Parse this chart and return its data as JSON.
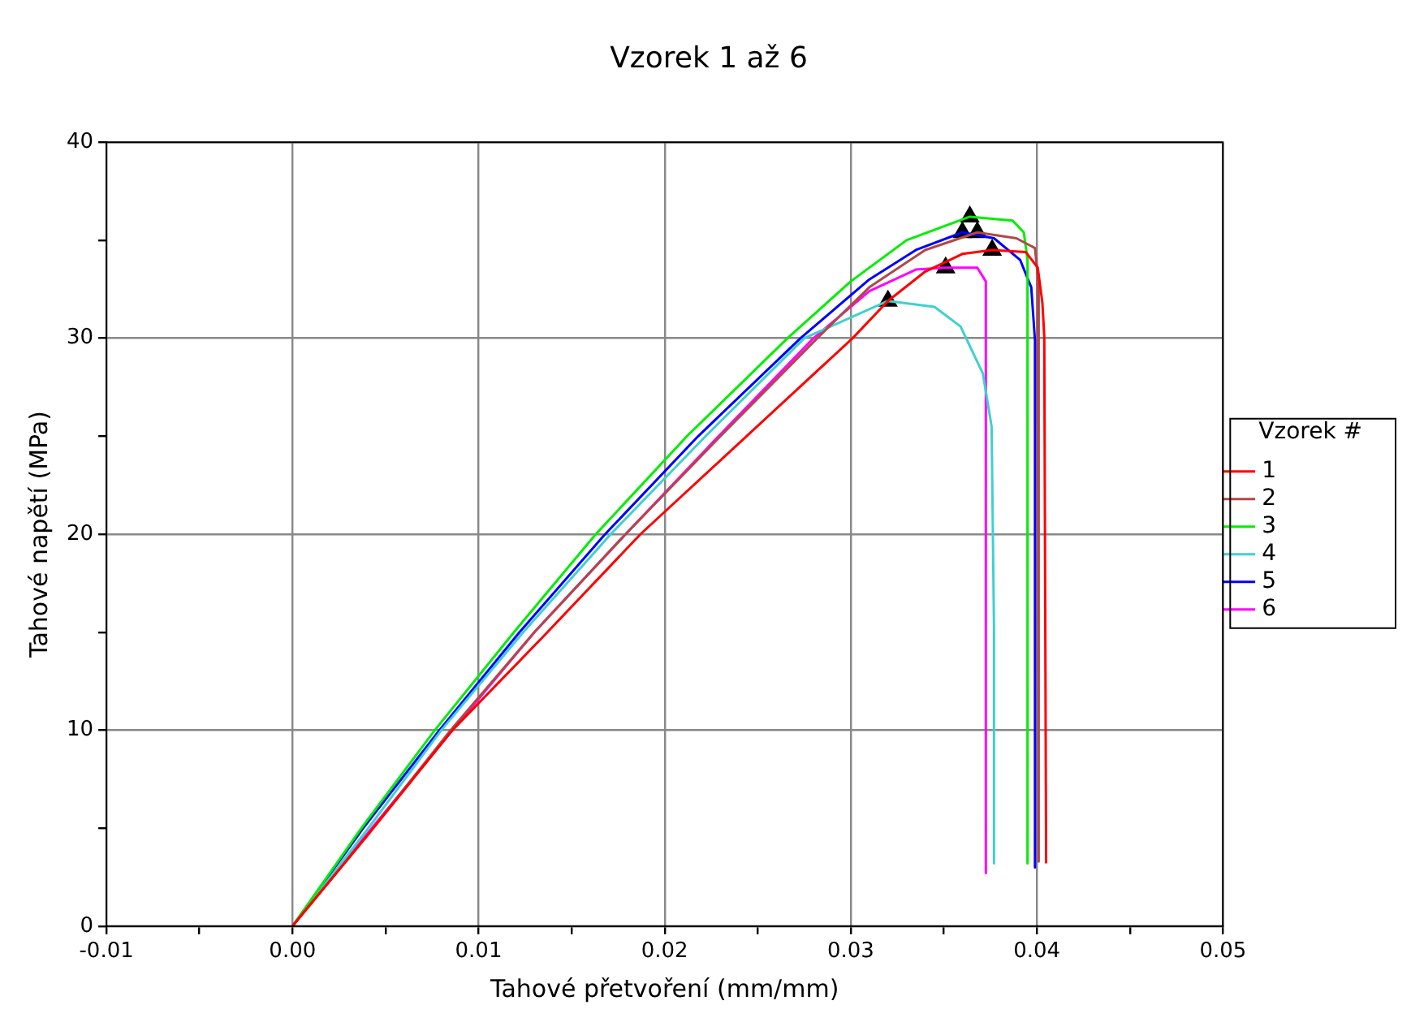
{
  "chart_data": {
    "type": "line",
    "title": "Vzorek 1 až 6",
    "xlabel": "Tahové přetvoření (mm/mm)",
    "ylabel": "Tahové napětí (MPa)",
    "legend_title": "Vzorek #",
    "legend": "right",
    "grid": true,
    "marker": "none",
    "line_style": "solid",
    "xlim": [
      -0.01,
      0.05
    ],
    "xticks": [
      -0.01,
      {
        "value": -0.005,
        "label": null
      },
      {
        "value": 0,
        "label": "0.00"
      },
      {
        "value": 0.005,
        "label": null
      },
      0.01,
      {
        "value": 0.015,
        "label": null
      },
      0.02,
      {
        "value": 0.025,
        "label": null
      },
      0.03,
      {
        "value": 0.035,
        "label": null
      },
      0.04,
      {
        "value": 0.045,
        "label": null
      },
      0.05
    ],
    "ylim": [
      0,
      40
    ],
    "yticks": [
      0,
      {
        "value": 5,
        "label": null
      },
      10,
      {
        "value": 15,
        "label": null
      },
      20,
      {
        "value": 25,
        "label": null
      },
      30,
      {
        "value": 35,
        "label": null
      },
      40
    ],
    "series": [
      {
        "name": "1",
        "color": "#ff0000",
        "x": [
          0,
          0.004,
          0.0086,
          0.0137,
          0.0187,
          0.0244,
          0.0301,
          0.032,
          0.034,
          0.036,
          0.0376,
          0.0394,
          0.04005,
          0.0403,
          0.0404,
          0.0405
        ],
        "values": [
          0,
          4.6,
          10,
          15,
          20,
          25,
          30,
          31.9,
          33.4,
          34.3,
          34.5,
          34.4,
          33.6,
          31.8,
          30.1,
          3.2
        ]
      },
      {
        "name": "2",
        "color": "#b04848",
        "x": [
          0,
          0.004,
          0.0085,
          0.013,
          0.0179,
          0.023,
          0.0282,
          0.031,
          0.034,
          0.0368,
          0.0389,
          0.0399,
          0.04005,
          0.0401
        ],
        "values": [
          0,
          4.6,
          10,
          15,
          20,
          25,
          30,
          32.6,
          34.5,
          35.4,
          35.1,
          34.6,
          33.2,
          3.3
        ]
      },
      {
        "name": "3",
        "color": "#00ee00",
        "x": [
          0,
          0.0037,
          0.00765,
          0.0119,
          0.0163,
          0.0212,
          0.0266,
          0.03,
          0.033,
          0.0364,
          0.0387,
          0.0393,
          0.0395,
          0.0395
        ],
        "values": [
          0,
          5,
          10,
          15,
          20,
          25,
          30,
          32.9,
          35,
          36.2,
          36,
          35.4,
          34,
          3.2
        ]
      },
      {
        "name": "4",
        "color": "#40d0d0",
        "x": [
          0,
          0.004,
          0.008,
          0.0124,
          0.0171,
          0.0222,
          0.0275,
          0.032,
          0.0345,
          0.0359,
          0.0371,
          0.03757,
          0.0377,
          0.0377
        ],
        "values": [
          0,
          4.9,
          10,
          15,
          20,
          25,
          30,
          31.9,
          31.6,
          30.6,
          28.2,
          25.5,
          15.1,
          3.2
        ]
      },
      {
        "name": "5",
        "color": "#0000ff",
        "x": [
          0,
          0.0038,
          0.0079,
          0.0122,
          0.0168,
          0.0218,
          0.0273,
          0.031,
          0.0335,
          0.036,
          0.0377,
          0.0391,
          0.0397,
          0.0399,
          0.0399
        ],
        "values": [
          0,
          5,
          10,
          15,
          20,
          25,
          30,
          33,
          34.5,
          35.4,
          35.1,
          34,
          32.6,
          29.9,
          3
        ]
      },
      {
        "name": "6",
        "color": "#ff00ff",
        "x": [
          0,
          0.004,
          0.0086,
          0.013,
          0.0179,
          0.0229,
          0.028,
          0.031,
          0.0335,
          0.0351,
          0.0368,
          0.03726,
          0.03726
        ],
        "values": [
          0,
          4.7,
          10,
          15,
          20,
          25,
          30,
          32.4,
          33.5,
          33.6,
          33.6,
          32.9,
          2.7
        ]
      },
      {
        "type": "scatter",
        "marker": "triangle",
        "color": "#000000",
        "x": [
          0.0376,
          0.0368,
          0.0364,
          0.032,
          0.036,
          0.0351
        ],
        "values": [
          34.5,
          35.4,
          36.2,
          31.9,
          35.4,
          33.6
        ]
      }
    ]
  }
}
